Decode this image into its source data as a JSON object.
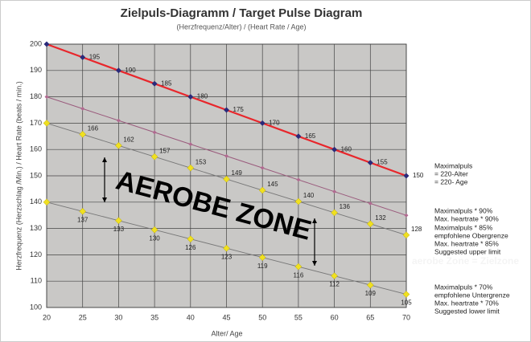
{
  "chart_data": {
    "type": "line",
    "title": "Zielpuls-Diagramm / Target Pulse Diagram",
    "subtitle": "(Herzfrequenz/Alter) / (Heart Rate / Age)",
    "x_label": "Alter/ Age",
    "y_label": "Herzfrequenz (Herzschlag /Min.) / Heart Rate (beats / min.)",
    "x": [
      20,
      25,
      30,
      35,
      40,
      45,
      50,
      55,
      60,
      65,
      70
    ],
    "xlim": [
      20,
      70
    ],
    "xticks": [
      20,
      25,
      30,
      35,
      40,
      45,
      50,
      55,
      60,
      65,
      70
    ],
    "ylim": [
      100,
      200
    ],
    "yticks": [
      100,
      110,
      120,
      130,
      140,
      150,
      160,
      170,
      180,
      190,
      200
    ],
    "grid": true,
    "annotation": "AEROBE ZONE",
    "zone_note": "aerobe Zone = Zielzone",
    "series": [
      {
        "name": "Maximalpuls",
        "notes": [
          "= 220-Alter",
          "= 220- Age"
        ],
        "color": "#e8262b",
        "marker_color": "#2a2a7a",
        "values": [
          200,
          195,
          190,
          185,
          180,
          175,
          170,
          165,
          160,
          155,
          150
        ],
        "value_labels": [
          null,
          "195",
          "190",
          "185",
          "180",
          "175",
          "170",
          "165",
          "160",
          "155",
          "150"
        ]
      },
      {
        "name": "Maximalpuls * 90%",
        "notes": [
          "Max. heartrate * 90%"
        ],
        "color": "#9a5a7c",
        "marker_color": "#b06a90",
        "values": [
          180,
          175.5,
          171,
          166.5,
          162,
          157.5,
          153,
          148.5,
          144,
          139.5,
          135
        ]
      },
      {
        "name": "Maximalpuls * 85%",
        "notes": [
          "empfohlene Obergrenze",
          "Max. heartrate * 85%",
          "Suggested upper limit"
        ],
        "color": "#777777",
        "marker_color": "#f0e020",
        "values": [
          170,
          165.75,
          161.5,
          157.25,
          153,
          148.75,
          144.5,
          140.25,
          136,
          131.75,
          127.5
        ],
        "value_labels": [
          null,
          "166",
          "162",
          "157",
          "153",
          "149",
          "145",
          "140",
          "136",
          "132",
          "128"
        ]
      },
      {
        "name": "Maximalpuls * 70%",
        "notes": [
          "empfohlene Untergrenze",
          "Max. heartrate * 70%",
          "Suggested lower limit"
        ],
        "color": "#777777",
        "marker_color": "#f0e020",
        "values": [
          140,
          136.5,
          133,
          129.5,
          126,
          122.5,
          119,
          115.5,
          112,
          108.5,
          105
        ],
        "value_labels": [
          null,
          "137",
          "133",
          "130",
          "126",
          "123",
          "119",
          "116",
          "112",
          "109",
          "105"
        ]
      }
    ]
  }
}
